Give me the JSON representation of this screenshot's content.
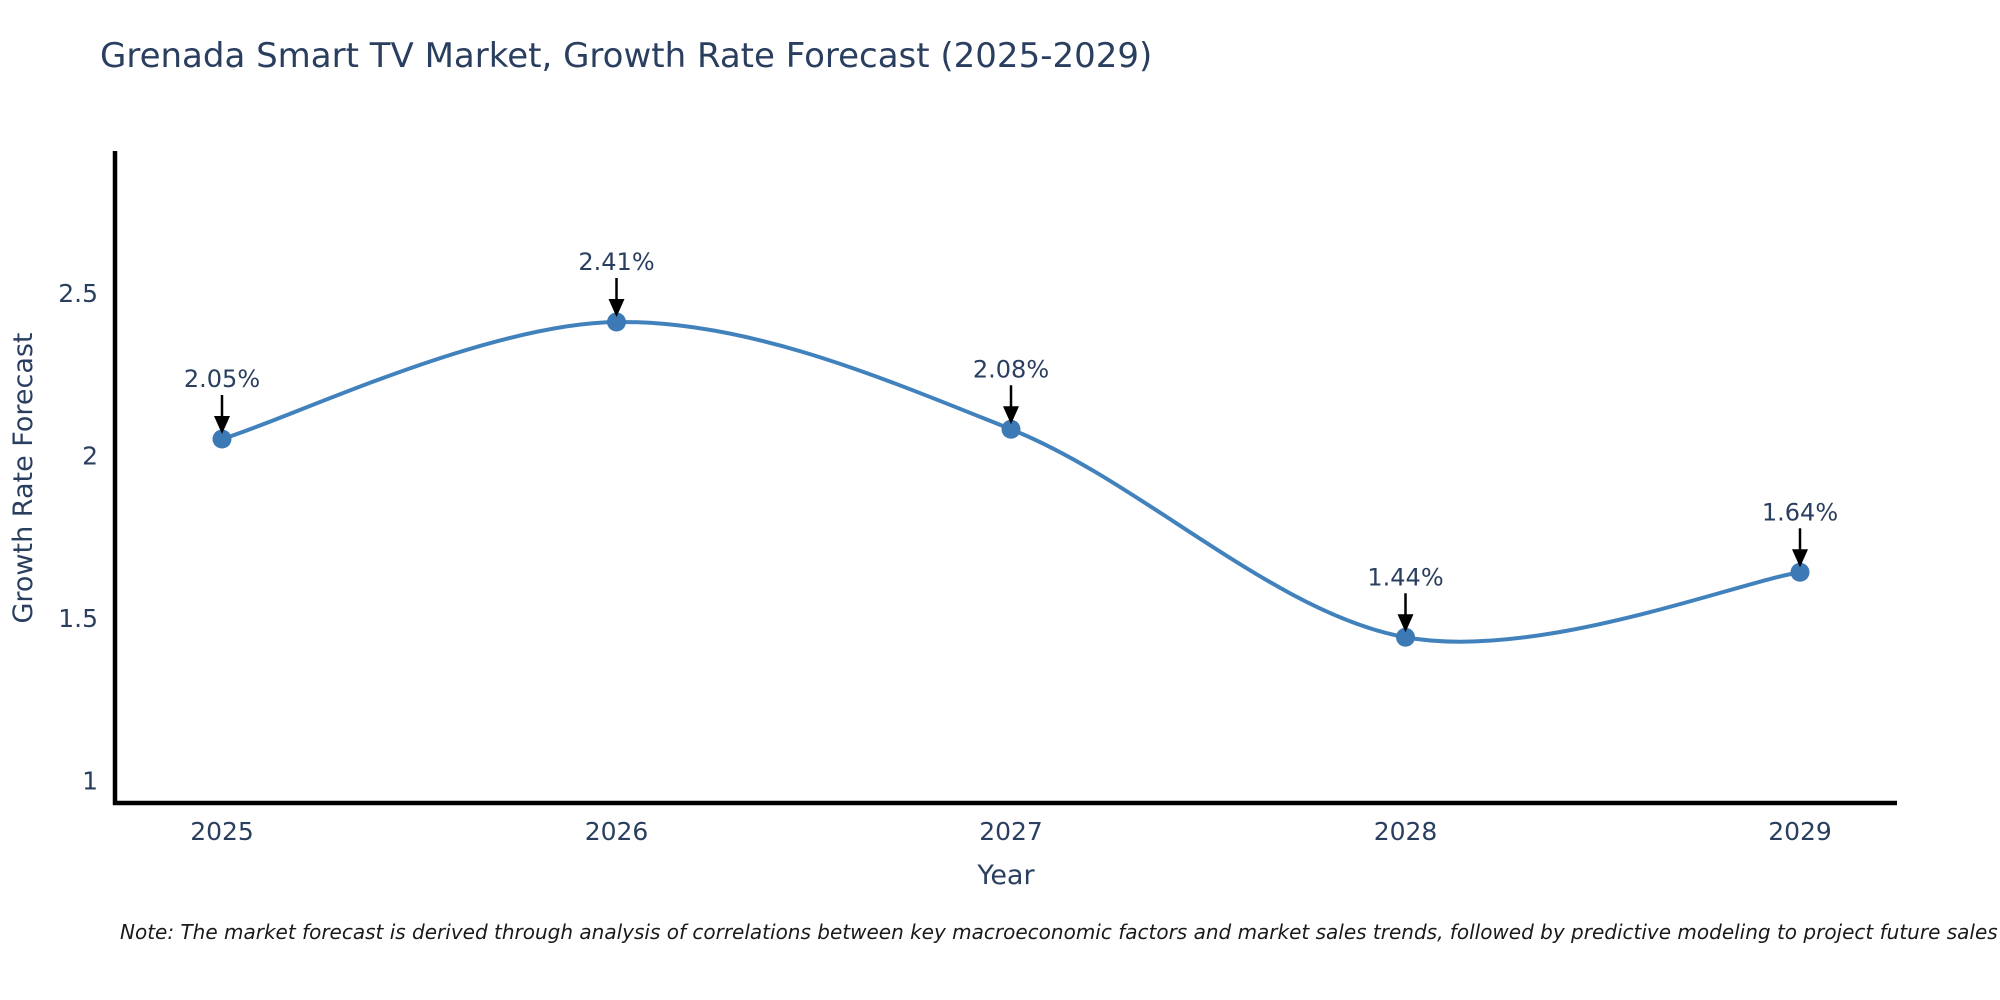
{
  "title": "Grenada Smart TV Market, Growth Rate Forecast (2025-2029)",
  "note": "Note: The market forecast is derived through analysis of correlations between key macroeconomic factors and market sales trends, followed by predictive modeling to project future sales",
  "chart_data": {
    "type": "line",
    "title": "Grenada Smart TV Market, Growth Rate Forecast (2025-2029)",
    "categories": [
      "2025",
      "2026",
      "2027",
      "2028",
      "2029"
    ],
    "series": [
      {
        "name": "Growth Rate Forecast",
        "values": [
          2.05,
          2.41,
          2.08,
          1.44,
          1.64
        ]
      }
    ],
    "point_labels": [
      "2.05%",
      "2.41%",
      "2.08%",
      "1.44%",
      "1.64%"
    ],
    "xlabel": "Year",
    "ylabel": "Growth Rate Forecast",
    "yticks": [
      1,
      1.5,
      2,
      2.5
    ],
    "ylim": [
      0.93,
      2.93
    ],
    "grid": false,
    "legend": "none",
    "line_shape": "spline",
    "line_color": "#4182bd",
    "marker_color": "#3d7ab5",
    "axis_color": "#000000",
    "text_color": "#2a3f5f",
    "annotation_arrow_color": "#000000"
  }
}
